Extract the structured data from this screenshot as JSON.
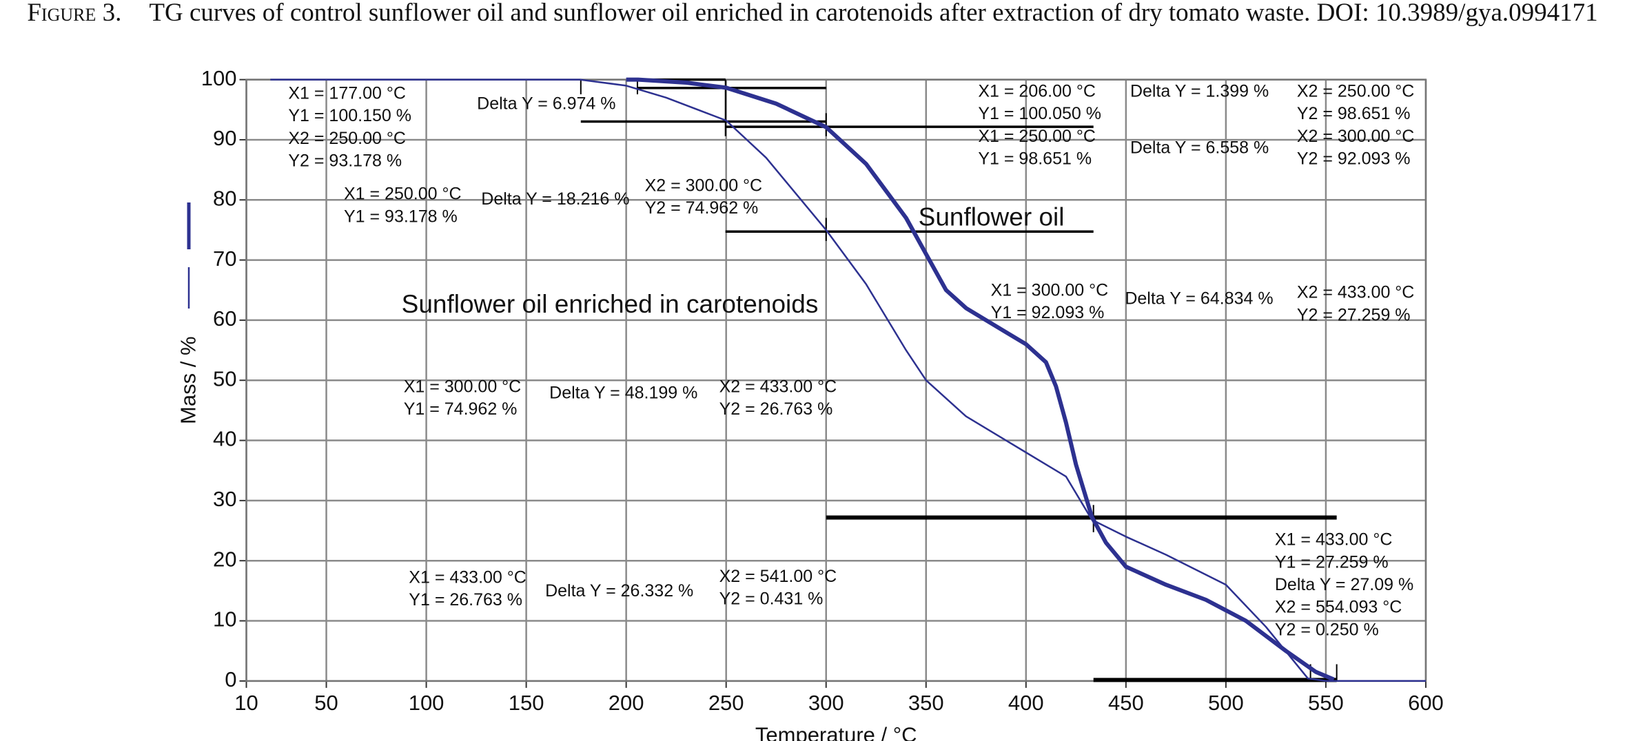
{
  "chart_data": {
    "type": "line",
    "figure_label": "Figure 3.",
    "title": "TG curves of control sunflower oil and sunflower oil enriched in carotenoids after extraction of dry tomato waste. DOI: 10.3989/gya.0994171",
    "xlabel": "Temperature / °C",
    "ylabel": "Mass / %",
    "xlim": [
      10,
      600
    ],
    "ylim": [
      0,
      100
    ],
    "xticks": [
      10,
      50,
      100,
      150,
      200,
      250,
      300,
      350,
      400,
      450,
      500,
      550,
      600
    ],
    "yticks": [
      0,
      10,
      20,
      30,
      40,
      50,
      60,
      70,
      80,
      90,
      100
    ],
    "grid": true,
    "series": [
      {
        "name": "Sunflower oil",
        "color": "#2d3190",
        "line_width": "thick",
        "x": [
          200,
          206,
          230,
          250,
          275,
          300,
          320,
          340,
          350,
          360,
          370,
          380,
          390,
          400,
          410,
          415,
          420,
          425,
          433,
          440,
          450,
          470,
          490,
          510,
          530,
          545,
          554
        ],
        "values": [
          100,
          100,
          99.5,
          98.65,
          96,
          92.1,
          86,
          77,
          71,
          65,
          62,
          60,
          58,
          56,
          53,
          49,
          43,
          36,
          27.26,
          23,
          19,
          16,
          13.5,
          10,
          5,
          1.5,
          0.25
        ]
      },
      {
        "name": "Sunflower oil enriched in carotenoids",
        "color": "#2d3190",
        "line_width": "thin",
        "x": [
          22,
          100,
          177,
          200,
          220,
          250,
          270,
          300,
          320,
          340,
          350,
          370,
          400,
          420,
          433,
          450,
          470,
          500,
          520,
          541,
          550,
          600
        ],
        "values": [
          100,
          100,
          100,
          99,
          97,
          93.2,
          87,
          75,
          66,
          55,
          50,
          44,
          38,
          34,
          26.8,
          24,
          21,
          16,
          9,
          0.43,
          0,
          0
        ]
      }
    ],
    "annotations": [
      [
        "X1 = 177.00 °C",
        "Y1 = 100.150 %",
        "X2 = 250.00 °C",
        "Y2 = 93.178 %"
      ],
      [
        "Delta Y = 6.974 %"
      ],
      [
        "X1 = 250.00 °C",
        "Y1 = 93.178 %"
      ],
      [
        "Delta Y = 18.216 %"
      ],
      [
        "X2 = 300.00 °C",
        "Y2 = 74.962 %"
      ],
      [
        "X1 = 206.00 °C",
        "Y1 = 100.050 %",
        "X1 = 250.00 °C",
        "Y1 = 98.651 %"
      ],
      [
        "Delta Y = 1.399 %"
      ],
      [
        "X2 = 250.00 °C",
        "Y2 = 98.651 %",
        "X2 = 300.00 °C",
        "Y2 = 92.093 %"
      ],
      [
        "Delta Y = 6.558 %"
      ],
      [
        "X1 = 300.00 °C",
        "Y1 = 92.093 %"
      ],
      [
        "Delta Y = 64.834 %"
      ],
      [
        "X2 = 433.00 °C",
        "Y2 = 27.259 %"
      ],
      [
        "X1 = 300.00 °C",
        "Y1 = 74.962 %"
      ],
      [
        "Delta Y = 48.199 %"
      ],
      [
        "X2 = 433.00 °C",
        "Y2 = 26.763 %"
      ],
      [
        "X1 = 433.00 °C",
        "Y1 = 27.259 %",
        "Delta Y = 27.09 %",
        "X2 = 554.093 °C",
        "Y2 = 0.250 %"
      ],
      [
        "X1 = 433.00 °C",
        "Y1 = 26.763 %"
      ],
      [
        "Delta Y = 26.332 %"
      ],
      [
        "X2 = 541.00 °C",
        "Y2 = 0.431 %"
      ]
    ]
  }
}
